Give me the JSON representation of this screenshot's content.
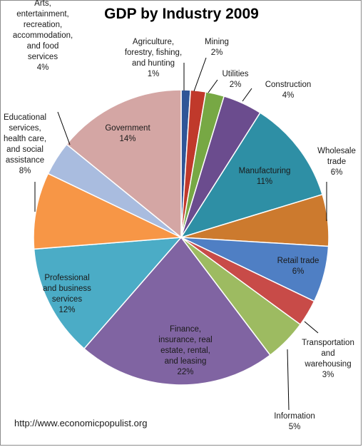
{
  "chart_data": {
    "type": "pie",
    "title": "GDP by Industry 2009",
    "start_angle_deg": 0,
    "direction": "clockwise",
    "slices": [
      {
        "label": "Agriculture, forestry, fishing, and hunting",
        "label_lines": [
          "Agriculture,",
          "forestry, fishing,",
          "and hunting"
        ],
        "value_label": "1%",
        "value": 1.0,
        "color": "#2f5597"
      },
      {
        "label": "Mining",
        "label_lines": [
          "Mining"
        ],
        "value_label": "2%",
        "value": 1.65,
        "color": "#c0392b"
      },
      {
        "label": "Utilities",
        "label_lines": [
          "Utilities"
        ],
        "value_label": "2%",
        "value": 2.0,
        "color": "#77a844"
      },
      {
        "label": "Construction",
        "label_lines": [
          "Construction"
        ],
        "value_label": "4%",
        "value": 4.25,
        "color": "#6b4c8e"
      },
      {
        "label": "Manufacturing",
        "label_lines": [
          "Manufacturing"
        ],
        "value_label": "11%",
        "value": 11.2,
        "color": "#2e8fa5"
      },
      {
        "label": "Wholesale trade",
        "label_lines": [
          "Wholesale",
          "trade"
        ],
        "value_label": "6%",
        "value": 5.6,
        "color": "#cc7a2e"
      },
      {
        "label": "Retail trade",
        "label_lines": [
          "Retail trade"
        ],
        "value_label": "6%",
        "value": 6.1,
        "color": "#4f7fc4"
      },
      {
        "label": "Transportation and warehousing",
        "label_lines": [
          "Transportation",
          "and",
          "warehousing"
        ],
        "value_label": "3%",
        "value": 2.9,
        "color": "#c84b48"
      },
      {
        "label": "Information",
        "label_lines": [
          "Information"
        ],
        "value_label": "5%",
        "value": 4.6,
        "color": "#9dbb61"
      },
      {
        "label": "Finance, insurance, real estate, rental, and leasing",
        "label_lines": [
          "Finance,",
          "insurance, real",
          "estate, rental,",
          "and leasing"
        ],
        "value_label": "22%",
        "value": 21.5,
        "color": "#8064a2"
      },
      {
        "label": "Professional and business services",
        "label_lines": [
          "Professional",
          "and business",
          "services"
        ],
        "value_label": "12%",
        "value": 12.2,
        "color": "#4bacc6"
      },
      {
        "label": "Educational services, health care, and social assistance",
        "label_lines": [
          "Educational",
          "services,",
          "health care,",
          "and social",
          "assistance"
        ],
        "value_label": "8%",
        "value": 8.3,
        "color": "#f79646"
      },
      {
        "label": "Arts, entertainment, recreation, accommodation, and food services",
        "label_lines": [
          "Arts,",
          "entertainment,",
          "recreation,",
          "accommodation,",
          "and food",
          "services"
        ],
        "value_label": "4%",
        "value": 3.7,
        "color": "#a9bcdf"
      },
      {
        "label": "Government",
        "label_lines": [
          "Government"
        ],
        "value_label": "14%",
        "value": 14.0,
        "color": "#d4a6a4"
      }
    ]
  },
  "footer": {
    "source": "http://www.economicpopulist.org"
  }
}
